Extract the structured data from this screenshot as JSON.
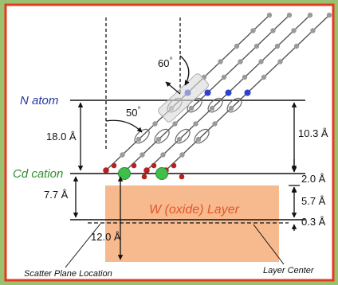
{
  "labels": {
    "n_atom": "N atom",
    "cd_cation": "Cd cation",
    "w_layer": "W (oxide) Layer",
    "scatter_plane": "Scatter Plane Location",
    "layer_center": "Layer Center"
  },
  "angles": {
    "angle_60": "60",
    "angle_50": "50",
    "degree": "°"
  },
  "distances": {
    "d_18_0": "18.0 Å",
    "d_7_7": "7.7 Å",
    "d_10_3": "10.3 Å",
    "d_2_0": "2.0 Å",
    "d_5_7": "5.7 Å",
    "d_0_3": "0.3 Å",
    "d_12_0": "12.0 Å"
  },
  "colors": {
    "frame": "#e23b20",
    "n_atom_text": "#2436a0",
    "cd_text": "#2e8f2e",
    "layer_fill": "#f7b98e",
    "layer_text": "#e2572a",
    "cd_atom": "#3fbe4a",
    "oxygen": "#b52020",
    "nitrogen": "#2f3fd0",
    "carbon": "#9a9a9a"
  }
}
